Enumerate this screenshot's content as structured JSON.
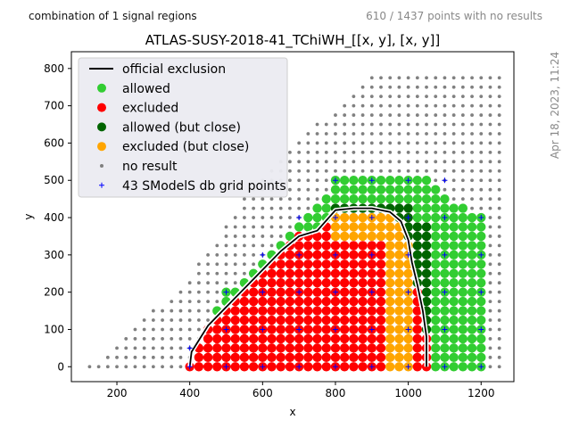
{
  "header": {
    "left_text": "combination of 1 signal regions",
    "right_text": "610 / 1437 points with no results",
    "side_text": "Apr 18, 2023, 11:24"
  },
  "chart_data": {
    "type": "scatter",
    "title": "ATLAS-SUSY-2018-41_TChiWH_[[x, y], [x, y]]",
    "xlabel": "x",
    "ylabel": "y",
    "xlim": [
      75,
      1290
    ],
    "ylim": [
      -40,
      845
    ],
    "xticks": [
      200,
      400,
      600,
      800,
      1000,
      1200
    ],
    "yticks": [
      0,
      100,
      200,
      300,
      400,
      500,
      600,
      700,
      800
    ],
    "grid": false,
    "legend_position": "top-left",
    "colors": {
      "allowed": "#32cd32",
      "excluded": "#ff0000",
      "allowed_close": "#006400",
      "excluded_close": "#ffa500",
      "no_result": "#808080",
      "grid_points": "#0000ff",
      "exclusion_line": "#000000"
    },
    "legend": [
      {
        "key": "official",
        "label": "official exclusion"
      },
      {
        "key": "allowed",
        "label": "allowed"
      },
      {
        "key": "excluded",
        "label": "excluded"
      },
      {
        "key": "allowed_close",
        "label": "allowed (but close)"
      },
      {
        "key": "excluded_close",
        "label": "excluded (but close)"
      },
      {
        "key": "no_result",
        "label": "no result"
      },
      {
        "key": "grid_points",
        "label": "43 SModelS db grid points"
      }
    ],
    "grid_region": {
      "x_min": 125,
      "x_max": 1250,
      "y_min": 0,
      "step_x": 25,
      "step_y": 25,
      "upper_edge": [
        [
          125,
          0
        ],
        [
          400,
          240
        ],
        [
          600,
          520
        ],
        [
          900,
          780
        ],
        [
          1250,
          780
        ]
      ]
    },
    "result_region": {
      "x_min": 400,
      "x_max": 1200,
      "y_min": 0,
      "upper_edge": [
        [
          400,
          20
        ],
        [
          500,
          200
        ],
        [
          700,
          380
        ],
        [
          800,
          500
        ],
        [
          1050,
          500
        ],
        [
          1100,
          460
        ],
        [
          1200,
          400
        ]
      ]
    },
    "excluded_region": {
      "left_edge": [
        [
          400,
          0
        ],
        [
          700,
          350
        ],
        [
          800,
          400
        ],
        [
          900,
          420
        ],
        [
          950,
          400
        ],
        [
          1000,
          380
        ],
        [
          1050,
          300
        ],
        [
          1050,
          0
        ]
      ],
      "excluded_boundary": [
        [
          400,
          0
        ],
        [
          1000,
          0
        ],
        [
          1000,
          150
        ],
        [
          925,
          200
        ],
        [
          900,
          420
        ]
      ],
      "band_width": 25
    },
    "official_exclusion": [
      [
        400,
        0
      ],
      [
        405,
        40
      ],
      [
        450,
        110
      ],
      [
        500,
        160
      ],
      [
        550,
        210
      ],
      [
        600,
        260
      ],
      [
        650,
        310
      ],
      [
        700,
        350
      ],
      [
        750,
        365
      ],
      [
        800,
        420
      ],
      [
        850,
        425
      ],
      [
        900,
        425
      ],
      [
        950,
        415
      ],
      [
        980,
        390
      ],
      [
        1000,
        340
      ],
      [
        1010,
        280
      ],
      [
        1025,
        220
      ],
      [
        1040,
        150
      ],
      [
        1050,
        80
      ],
      [
        1050,
        0
      ]
    ],
    "smodels_grid_points": [
      [
        400,
        0
      ],
      [
        400,
        50
      ],
      [
        500,
        0
      ],
      [
        500,
        100
      ],
      [
        500,
        200
      ],
      [
        600,
        0
      ],
      [
        600,
        100
      ],
      [
        600,
        200
      ],
      [
        600,
        300
      ],
      [
        700,
        0
      ],
      [
        700,
        100
      ],
      [
        700,
        200
      ],
      [
        700,
        300
      ],
      [
        700,
        400
      ],
      [
        800,
        0
      ],
      [
        800,
        100
      ],
      [
        800,
        200
      ],
      [
        800,
        300
      ],
      [
        800,
        400
      ],
      [
        800,
        500
      ],
      [
        900,
        0
      ],
      [
        900,
        100
      ],
      [
        900,
        200
      ],
      [
        900,
        300
      ],
      [
        900,
        400
      ],
      [
        900,
        500
      ],
      [
        1000,
        0
      ],
      [
        1000,
        100
      ],
      [
        1000,
        200
      ],
      [
        1000,
        300
      ],
      [
        1000,
        400
      ],
      [
        1000,
        500
      ],
      [
        1100,
        0
      ],
      [
        1100,
        100
      ],
      [
        1100,
        200
      ],
      [
        1100,
        300
      ],
      [
        1100,
        400
      ],
      [
        1100,
        500
      ],
      [
        1200,
        0
      ],
      [
        1200,
        100
      ],
      [
        1200,
        200
      ],
      [
        1200,
        300
      ],
      [
        1200,
        400
      ]
    ]
  }
}
